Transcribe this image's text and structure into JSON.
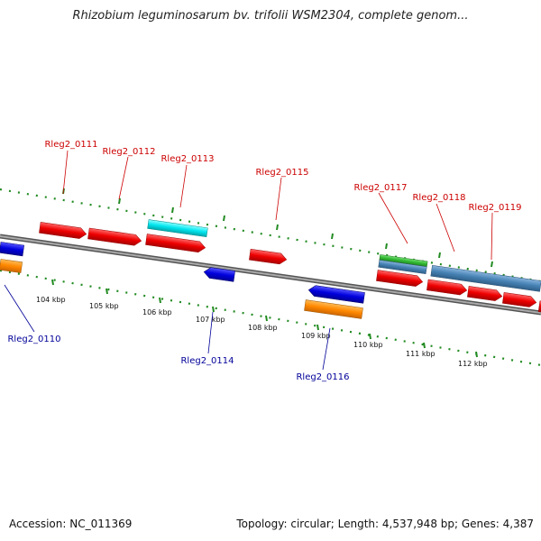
{
  "title": "Rhizobium leguminosarum bv. trifolii WSM2304, complete genom...",
  "footer": {
    "accession": "Accession: NC_011369",
    "topology": "Topology: circular; Length: 4,537,948 bp; Genes: 4,387"
  },
  "scale_labels": [
    "104 kbp",
    "105 kbp",
    "106 kbp",
    "107 kbp",
    "108 kbp",
    "109 kbp",
    "110 kbp",
    "111 kbp",
    "112 kbp"
  ],
  "gene_labels_top": [
    "Rleg2_0111",
    "Rleg2_0112",
    "Rleg2_0113",
    "Rleg2_0115",
    "Rleg2_0117",
    "Rleg2_0118",
    "Rleg2_0119"
  ],
  "gene_labels_bottom": [
    "Rleg2_0110",
    "Rleg2_0114",
    "Rleg2_0116"
  ],
  "colors": {
    "cds": "#ee0000",
    "cds_reverse": "#0000dd",
    "gene_reverse": "#ff8800",
    "trna": "#00e5ee",
    "rrna": "#33bb33",
    "misc": "#4682b4",
    "backbone": "#888888",
    "tick": "#228b22"
  }
}
